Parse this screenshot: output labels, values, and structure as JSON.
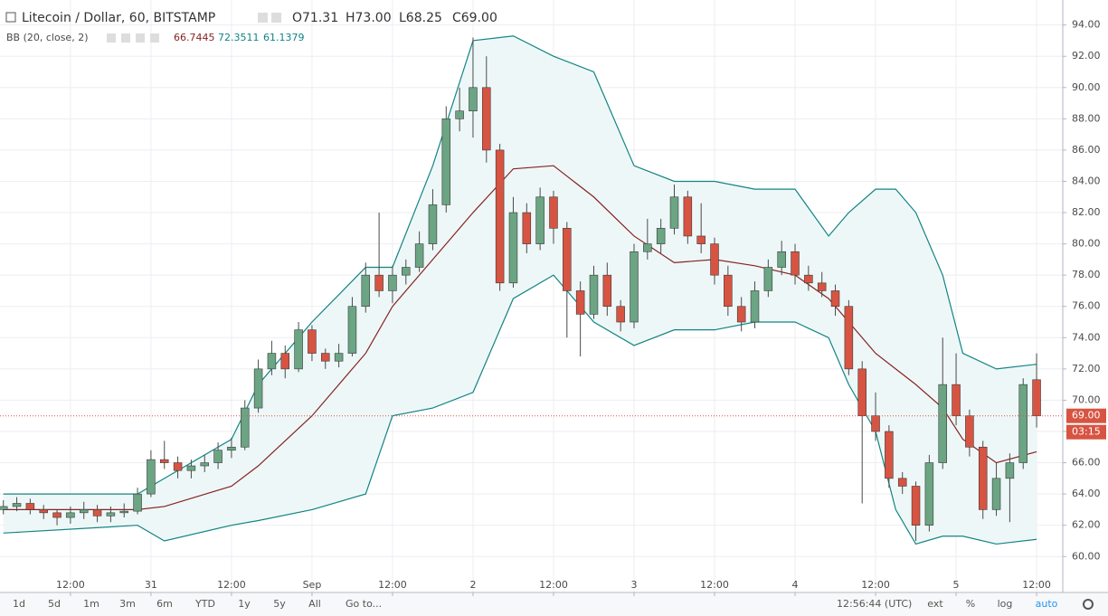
{
  "header": {
    "symbol": "Litecoin / Dollar, 60, BITSTAMP",
    "open": "O71.31",
    "high": "H73.00",
    "low": "L68.25",
    "close": "C69.00",
    "indicator": "BB (20, close, 2)",
    "indicator_values": [
      "66.7445",
      "72.3511",
      "61.1379"
    ]
  },
  "chart_data": {
    "type": "candlestick",
    "x": [
      2,
      4,
      6,
      8,
      10,
      12,
      14,
      16,
      18,
      20,
      22,
      24,
      26,
      28,
      30,
      32,
      34,
      36,
      38,
      40,
      42,
      44,
      46,
      48,
      50,
      52,
      54,
      56,
      58,
      60,
      62,
      64,
      66,
      68,
      70,
      72,
      74,
      76,
      78,
      80,
      82,
      84,
      86,
      88,
      90,
      92,
      94,
      96,
      98,
      100,
      102,
      104,
      106,
      108,
      110,
      112,
      114,
      116,
      118,
      120,
      122,
      124,
      126,
      128,
      130,
      132,
      134,
      136,
      138,
      140,
      142,
      144,
      146,
      148,
      150,
      152,
      154,
      156
    ],
    "open": [
      63,
      63.2,
      63.4,
      63,
      62.8,
      62.5,
      62.8,
      63,
      62.6,
      62.8,
      62.9,
      64,
      66.2,
      66,
      65.5,
      65.8,
      66,
      66.8,
      67,
      69.5,
      72,
      73,
      72,
      74.5,
      73,
      72.5,
      73,
      76,
      78,
      77,
      78,
      78.5,
      80,
      82.5,
      88,
      88.5,
      90,
      86,
      77.5,
      82,
      80,
      83,
      81,
      77,
      75.5,
      78,
      76,
      75,
      79.5,
      80,
      81,
      83,
      80.5,
      80,
      78,
      76,
      75,
      77,
      78.5,
      79.5,
      78,
      77.5,
      77,
      76,
      72,
      69,
      68,
      65,
      64.5,
      62,
      66,
      71,
      69,
      67,
      63,
      65,
      66,
      71.31
    ],
    "high": [
      63.6,
      63.8,
      63.7,
      63.3,
      63,
      63.2,
      63.5,
      63.3,
      63.2,
      63.4,
      64.4,
      66.8,
      67.4,
      66.4,
      66.2,
      66.5,
      67.3,
      67.6,
      70,
      72.6,
      73.8,
      73.5,
      75,
      74.8,
      73.3,
      73.6,
      76.6,
      78.8,
      82,
      78.6,
      79,
      80.8,
      83.5,
      88.8,
      90,
      93.2,
      92,
      86.4,
      83,
      82.6,
      83.6,
      83.4,
      81.4,
      77.6,
      78.6,
      78.8,
      76.4,
      80,
      81.6,
      81.6,
      83.8,
      83.4,
      82.6,
      80.4,
      78.6,
      76.6,
      77.6,
      79,
      80.2,
      80,
      78.6,
      78.2,
      77.4,
      76.4,
      72.5,
      70.5,
      68.4,
      65.4,
      64.8,
      66.5,
      74,
      73,
      69.4,
      67.4,
      66,
      66.6,
      71.4,
      73
    ],
    "low": [
      62.7,
      62.9,
      62.7,
      62.4,
      62,
      62.1,
      62.4,
      62.2,
      62.2,
      62.5,
      62.7,
      63.8,
      65.6,
      65,
      65,
      65.4,
      65.6,
      66.3,
      66.8,
      69.2,
      71.6,
      71.4,
      71.8,
      72.5,
      72,
      72.1,
      72.8,
      75.6,
      76.6,
      76.2,
      77.4,
      78.2,
      79.6,
      82,
      87.2,
      86.8,
      85.2,
      77,
      77.2,
      79.4,
      79.6,
      80,
      74,
      72.8,
      75.2,
      75.4,
      74.4,
      74.6,
      79,
      79.4,
      80.6,
      80,
      79.4,
      77.4,
      75.4,
      74.4,
      74.6,
      76.6,
      78,
      77.4,
      77,
      76.6,
      75.4,
      71.6,
      63.4,
      67.4,
      64.4,
      64,
      61,
      61.6,
      65.6,
      68.4,
      66.4,
      62.4,
      62.6,
      62.2,
      65.6,
      68.25
    ],
    "close": [
      63.2,
      63.4,
      63,
      62.8,
      62.5,
      62.8,
      63,
      62.6,
      62.8,
      62.9,
      64,
      66.2,
      66,
      65.5,
      65.8,
      66,
      66.8,
      67,
      69.5,
      72,
      73,
      72,
      74.5,
      73,
      72.5,
      73,
      76,
      78,
      77,
      78,
      78.5,
      80,
      82.5,
      88,
      88.5,
      90,
      86,
      77.5,
      82,
      80,
      83,
      81,
      77,
      75.5,
      78,
      76,
      75,
      79.5,
      80,
      81,
      83,
      80.5,
      80,
      78,
      76,
      75,
      77,
      78.5,
      79.5,
      78,
      77.5,
      77,
      76,
      72,
      69,
      68,
      65,
      64.5,
      62,
      66,
      71,
      69,
      67,
      63,
      65,
      66,
      71,
      69
    ],
    "up_color": "#6ba583",
    "down_color": "#d75442",
    "bollinger": {
      "x": [
        2,
        22,
        26,
        36,
        40,
        48,
        56,
        60,
        66,
        72,
        78,
        84,
        90,
        96,
        102,
        108,
        114,
        120,
        125,
        128,
        132,
        135,
        138,
        142,
        145,
        150,
        156
      ],
      "upper": [
        64,
        64,
        65,
        67.5,
        71,
        75,
        78.5,
        78.5,
        85,
        93,
        93.3,
        92,
        91,
        85,
        84,
        84,
        83.5,
        83.5,
        80.5,
        82,
        83.5,
        83.5,
        82,
        78,
        73,
        72,
        72.3
      ],
      "middle": [
        63,
        63,
        63.2,
        64.5,
        65.8,
        69,
        73,
        76,
        79,
        82,
        84.8,
        85,
        83,
        80.5,
        78.8,
        79,
        78.6,
        78,
        76.5,
        75,
        73,
        72,
        71,
        69.5,
        67.5,
        66,
        66.7
      ],
      "lower": [
        61.5,
        62,
        61,
        62,
        62.3,
        63,
        64,
        69,
        69.5,
        70.5,
        76.5,
        78,
        75,
        73.5,
        74.5,
        74.5,
        75,
        75,
        74,
        71,
        68,
        63,
        60.8,
        61.3,
        61.3,
        60.8,
        61.1
      ],
      "band_color": "#138484",
      "middle_color": "#872323",
      "fill": "#eef7f7"
    },
    "xlim": [
      1.5,
      159.9
    ],
    "ylim": [
      57.7,
      95.6
    ],
    "xticks": [
      {
        "value": 12,
        "label": "12:00"
      },
      {
        "value": 24,
        "label": "31"
      },
      {
        "value": 36,
        "label": "12:00"
      },
      {
        "value": 48,
        "label": "Sep"
      },
      {
        "value": 60,
        "label": "12:00"
      },
      {
        "value": 72,
        "label": "2"
      },
      {
        "value": 84,
        "label": "12:00"
      },
      {
        "value": 96,
        "label": "3"
      },
      {
        "value": 108,
        "label": "12:00"
      },
      {
        "value": 120,
        "label": "4"
      },
      {
        "value": 132,
        "label": "12:00"
      },
      {
        "value": 144,
        "label": "5"
      },
      {
        "value": 156,
        "label": "12:00"
      }
    ],
    "yticks": [
      {
        "value": 60,
        "label": "60.00"
      },
      {
        "value": 62,
        "label": "62.00"
      },
      {
        "value": 64,
        "label": "64.00"
      },
      {
        "value": 66,
        "label": "66.00"
      },
      {
        "value": 68,
        "label": "68.00"
      },
      {
        "value": 70,
        "label": "70.00"
      },
      {
        "value": 72,
        "label": "72.00"
      },
      {
        "value": 74,
        "label": "74.00"
      },
      {
        "value": 76,
        "label": "76.00"
      },
      {
        "value": 78,
        "label": "78.00"
      },
      {
        "value": 80,
        "label": "80.00"
      },
      {
        "value": 82,
        "label": "82.00"
      },
      {
        "value": 84,
        "label": "84.00"
      },
      {
        "value": 86,
        "label": "86.00"
      },
      {
        "value": 88,
        "label": "88.00"
      },
      {
        "value": 90,
        "label": "90.00"
      },
      {
        "value": 92,
        "label": "92.00"
      },
      {
        "value": 94,
        "label": "94.00"
      }
    ],
    "grid": true,
    "last_price_label": "69.00",
    "countdown": "03:15"
  },
  "toolbar": {
    "ranges": [
      "1d",
      "5d",
      "1m",
      "3m",
      "6m",
      "YTD",
      "1y",
      "5y",
      "All"
    ],
    "goto": "Go to...",
    "clock": "12:56:44 (UTC)",
    "options": [
      "ext",
      "%",
      "log",
      "auto"
    ]
  }
}
